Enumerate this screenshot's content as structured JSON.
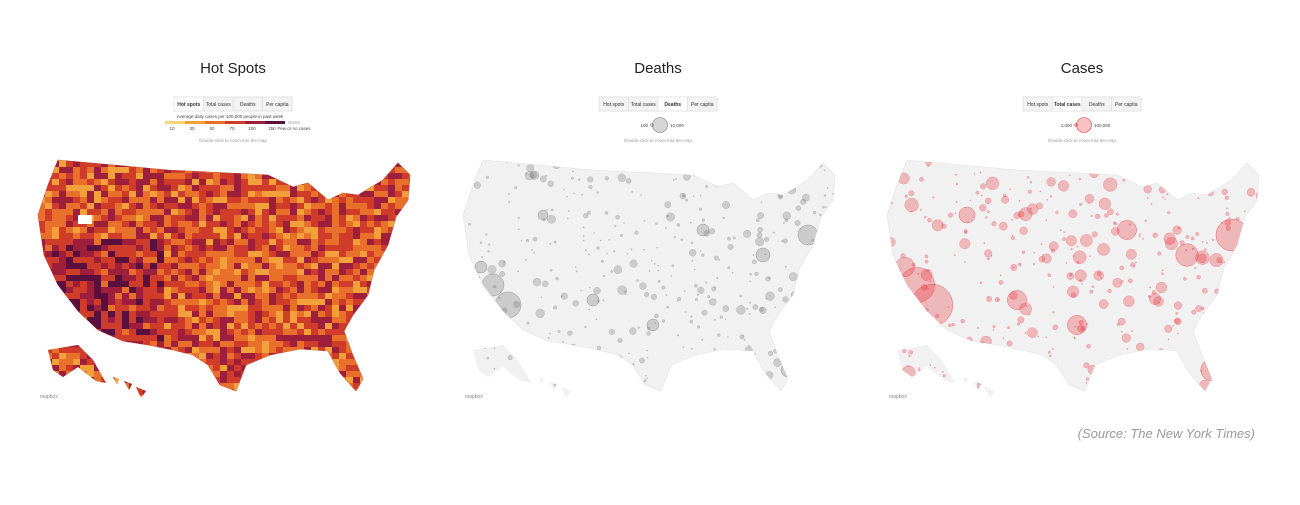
{
  "panels": [
    {
      "title": "Hot Spots",
      "style": "heat",
      "tabs": [
        {
          "label": "Hot spots",
          "selected": true
        },
        {
          "label": "Total cases",
          "selected": false
        },
        {
          "label": "Deaths",
          "selected": false
        },
        {
          "label": "Per capita",
          "selected": false
        }
      ],
      "legend": {
        "caption": "Average daily cases per 100,000 people in past week",
        "ticks": [
          "10",
          "30",
          "50",
          "70",
          "100",
          "250"
        ],
        "other": "Few or no cases",
        "colors": [
          "#f7d37a",
          "#f2a13a",
          "#e8702a",
          "#cf3d2a",
          "#9e1f3c",
          "#5a0f3f"
        ]
      },
      "note": "Double-click to zoom into the map"
    },
    {
      "title": "Deaths",
      "style": "bubble",
      "color": "#777777",
      "tabs": [
        {
          "label": "Hot spots",
          "selected": false
        },
        {
          "label": "Total cases",
          "selected": false
        },
        {
          "label": "Deaths",
          "selected": true
        },
        {
          "label": "Per capita",
          "selected": false
        }
      ],
      "legend": {
        "min": "100",
        "max": "10,000"
      },
      "note": "Double-click to zoom into the map"
    },
    {
      "title": "Cases",
      "style": "bubble",
      "color": "#e8333a",
      "tabs": [
        {
          "label": "Hot spots",
          "selected": false
        },
        {
          "label": "Total cases",
          "selected": true
        },
        {
          "label": "Deaths",
          "selected": false
        },
        {
          "label": "Per capita",
          "selected": false
        }
      ],
      "legend": {
        "min": "1,000",
        "max": "100,000"
      },
      "note": "Double-click to zoom into the map"
    }
  ],
  "attribution": "mapbox",
  "source": "(Source: The New York Times)"
}
